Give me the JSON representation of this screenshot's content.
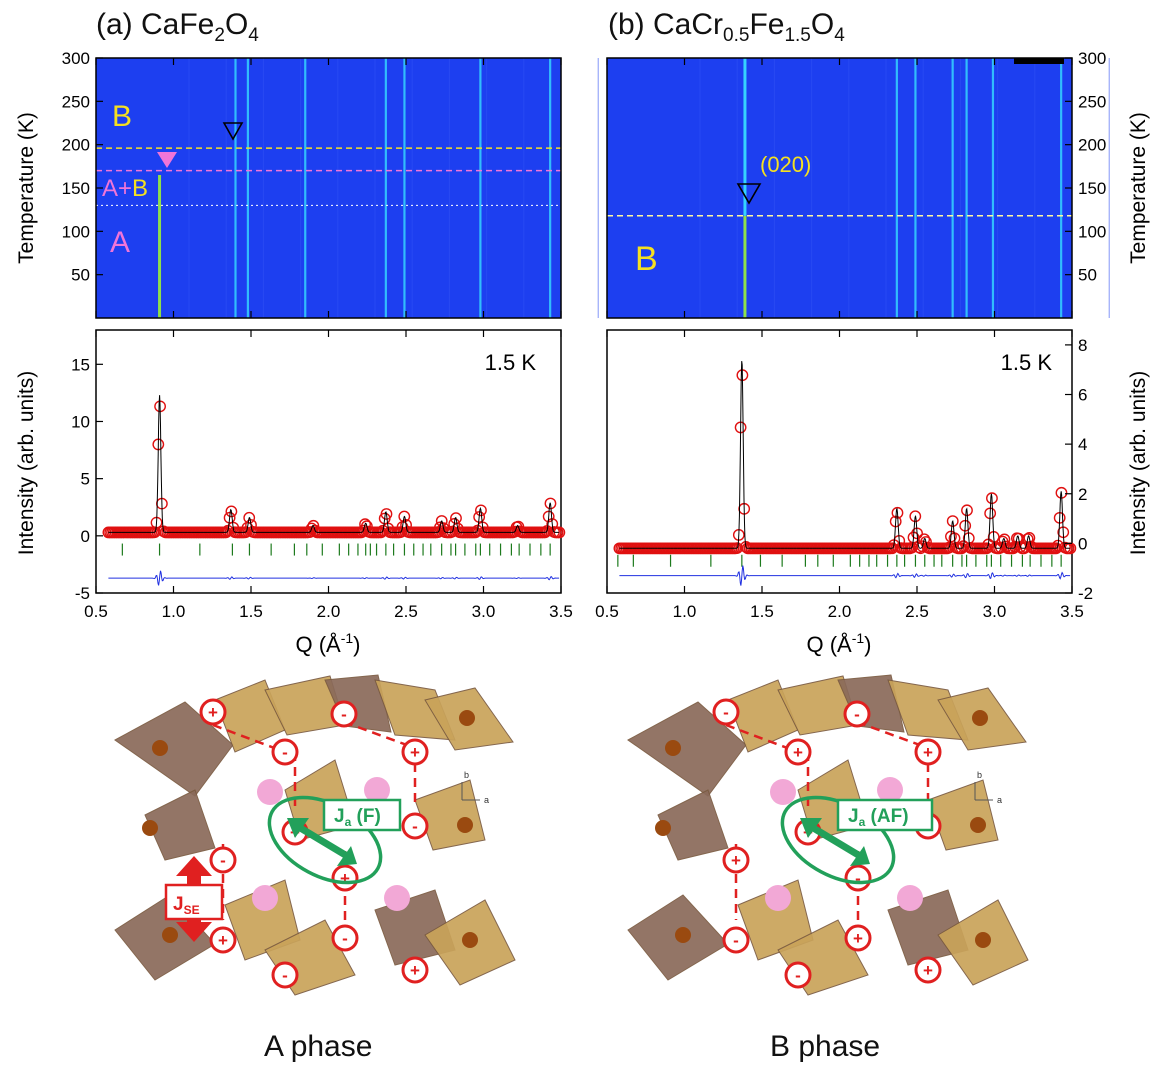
{
  "panel_a": {
    "title_prefix": "(a) CaFe",
    "title_sub1": "2",
    "title_mid": "O",
    "title_sub2": "4",
    "phase_B": "B",
    "phase_AB_A": "A",
    "phase_AB_plus": "+",
    "phase_AB_B": "B",
    "phase_A": "A",
    "temp_label": "1.5 K"
  },
  "panel_b": {
    "title_prefix": "(b) CaCr",
    "title_sub1": "0.5",
    "title_mid": "Fe",
    "title_sub2": "1.5",
    "title_mid2": "O",
    "title_sub3": "4",
    "phase_B": "B",
    "peak_label": "(020)",
    "temp_label": "1.5 K"
  },
  "axes": {
    "temperature_label": "Temperature (K)",
    "intensity_label": "Intensity (arb. units)",
    "q_label_main": "Q (Å",
    "q_label_sup": "-1",
    "q_label_close": ")"
  },
  "structure": {
    "left_caption": "A phase",
    "right_caption": "B phase",
    "ja_left_main": "J",
    "ja_left_sub": "a",
    "ja_left_tail": " (F)",
    "ja_right_main": "J",
    "ja_right_sub": "a",
    "ja_right_tail": " (AF)",
    "jse_main": "J",
    "jse_sub": "SE",
    "axis_b": "b",
    "axis_a": "a",
    "left_signs": [
      "+",
      "-",
      "-",
      "+",
      "+",
      "-",
      "-",
      "+",
      "+",
      "-",
      "-",
      "+"
    ],
    "right_signs": [
      "-",
      "-",
      "+",
      "+",
      "+",
      "-",
      "+",
      "-",
      "-",
      "+",
      "-",
      "+"
    ]
  },
  "colors": {
    "map_bg": "#1d3ff0",
    "map_line": "#35d3ff",
    "obs": "#e01010",
    "calc": "#000000",
    "diff": "#2030e0",
    "tick": "#1d7a1d",
    "accent_yellow": "#f5e020",
    "accent_pink": "#f075d8",
    "j_green": "#22a05a",
    "spin_red": "#e02020"
  },
  "chart_data": [
    {
      "type": "heatmap",
      "panel": "a",
      "xlim": [
        0.5,
        3.5
      ],
      "ylim": [
        0,
        300
      ],
      "yticks": [
        50,
        100,
        150,
        200,
        250,
        300
      ],
      "ylabel": "Temperature (K)",
      "lines_q": [
        0.91,
        1.4,
        1.48,
        1.85,
        2.37,
        2.49,
        2.98,
        3.43
      ],
      "magnetic_line_q": 0.91,
      "magnetic_line_tmax": 165,
      "boundaries_T": [
        196,
        170,
        130
      ]
    },
    {
      "type": "heatmap",
      "panel": "b",
      "xlim": [
        0.5,
        3.5
      ],
      "ylim": [
        0,
        300
      ],
      "yticks": [
        50,
        100,
        150,
        200,
        250,
        300
      ],
      "ylabel": "Temperature (K)",
      "lines_q": [
        1.39,
        2.37,
        2.49,
        2.73,
        2.82,
        2.99,
        3.43
      ],
      "magnetic_line_q": 1.39,
      "magnetic_line_tmax": 118,
      "boundaries_T": [
        118
      ]
    },
    {
      "type": "line",
      "panel": "a",
      "xlim": [
        0.5,
        3.5
      ],
      "ylim": [
        -5,
        18
      ],
      "xticks": [
        0.5,
        1.0,
        1.5,
        2.0,
        2.5,
        3.0,
        3.5
      ],
      "yticks": [
        -5,
        0,
        5,
        10,
        15
      ],
      "xlabel": "Q (Å-1)",
      "ylabel": "Intensity (arb. units)",
      "baseline": 0.3,
      "peaks": [
        [
          0.91,
          12.0
        ],
        [
          1.37,
          2.0
        ],
        [
          1.49,
          1.3
        ],
        [
          1.9,
          0.6
        ],
        [
          2.24,
          0.8
        ],
        [
          2.37,
          1.8
        ],
        [
          2.49,
          1.4
        ],
        [
          2.73,
          1.0
        ],
        [
          2.82,
          1.3
        ],
        [
          2.98,
          2.1
        ],
        [
          3.22,
          0.6
        ],
        [
          3.43,
          2.6
        ]
      ],
      "ticks_q": [
        0.67,
        0.91,
        1.17,
        1.38,
        1.49,
        1.63,
        1.78,
        1.86,
        1.96,
        2.07,
        2.13,
        2.19,
        2.24,
        2.27,
        2.31,
        2.37,
        2.42,
        2.49,
        2.55,
        2.61,
        2.66,
        2.73,
        2.79,
        2.82,
        2.88,
        2.95,
        2.98,
        3.04,
        3.11,
        3.18,
        3.23,
        3.3,
        3.37,
        3.43
      ],
      "tick_level": -1.2,
      "diff_level": -3.7,
      "annotation": "1.5 K"
    },
    {
      "type": "line",
      "panel": "b",
      "xlim": [
        0.5,
        3.5
      ],
      "ylim": [
        -2,
        8.6
      ],
      "xticks": [
        0.5,
        1.0,
        1.5,
        2.0,
        2.5,
        3.0,
        3.5
      ],
      "yticks": [
        -2,
        0,
        2,
        4,
        6,
        8
      ],
      "xlabel": "Q (Å-1)",
      "ylabel": "Intensity (arb. units)",
      "baseline": -0.2,
      "peaks": [
        [
          1.37,
          7.6
        ],
        [
          2.37,
          1.6
        ],
        [
          2.49,
          1.3
        ],
        [
          2.55,
          0.4
        ],
        [
          2.73,
          1.1
        ],
        [
          2.82,
          1.6
        ],
        [
          2.98,
          2.2
        ],
        [
          3.06,
          0.4
        ],
        [
          3.15,
          0.5
        ],
        [
          3.22,
          0.5
        ],
        [
          3.43,
          2.3
        ]
      ],
      "ticks_q": [
        0.57,
        0.67,
        0.91,
        1.17,
        1.37,
        1.49,
        1.63,
        1.78,
        1.86,
        1.96,
        2.07,
        2.13,
        2.19,
        2.24,
        2.31,
        2.37,
        2.42,
        2.49,
        2.55,
        2.61,
        2.66,
        2.73,
        2.79,
        2.82,
        2.88,
        2.95,
        2.98,
        3.04,
        3.11,
        3.18,
        3.23,
        3.3,
        3.37,
        3.43
      ],
      "tick_level": -0.7,
      "diff_level": -1.3,
      "annotation": "1.5 K"
    }
  ]
}
